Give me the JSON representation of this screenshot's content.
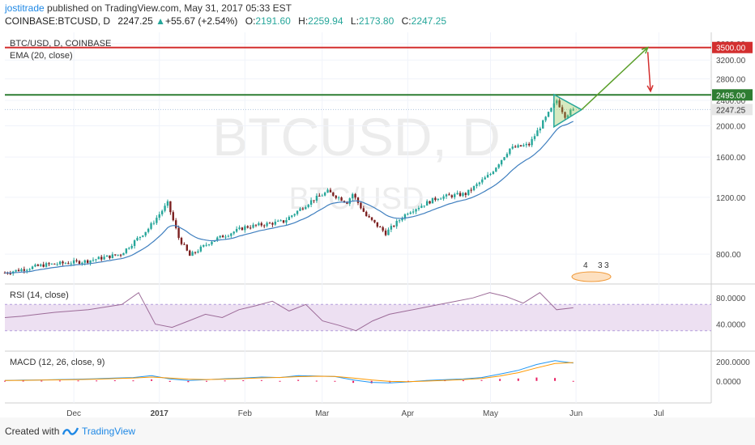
{
  "header": {
    "author": "jostitrade",
    "published_text": "published on TradingView.com, May 31, 2017 05:33 EST",
    "symbol": "COINBASE:BTCUSD, D",
    "last": "2247.25",
    "change": "+55.67 (+2.54%)",
    "o_label": "O:",
    "o_value": "2191.60",
    "h_label": "H:",
    "h_value": "2259.94",
    "l_label": "L:",
    "l_value": "2173.80",
    "c_label": "C:",
    "c_value": "2247.25"
  },
  "footer": {
    "created": "Created with",
    "brand": "TradingView"
  },
  "colors": {
    "up": "#26a69a",
    "down": "#7b1f1f",
    "ema": "#3f7fbf",
    "resistance": "#d32f2f",
    "support": "#2e7d32",
    "rsi": "#9c6b98",
    "rsi_band": "#ede0f2",
    "macd": "#2196f3",
    "signal": "#ff9800",
    "hist_pos": "#26a69a",
    "hist_neg": "#e91e63"
  },
  "chart_data": [
    {
      "type": "candlestick",
      "title": "BTC/USD, D, COINBASE",
      "indicator": "EMA (20, close)",
      "watermark_main": "BTCUSD, D",
      "watermark_sub": "BTC/USD",
      "y_scale": "log",
      "ylim": [
        650,
        3900
      ],
      "y_ticks": [
        "800.00",
        "1200.00",
        "1600.00",
        "2000.00",
        "2400.00",
        "2800.00",
        "3200.00",
        "3600.00"
      ],
      "x_ticks": [
        "Dec",
        "2017",
        "Feb",
        "Mar",
        "Apr",
        "May",
        "Jun",
        "Jul"
      ],
      "x_tick_dates": [
        "2016-12-01",
        "2017-01-01",
        "2017-02-01",
        "2017-03-01",
        "2017-04-01",
        "2017-05-01",
        "2017-06-01",
        "2017-07-01"
      ],
      "x_range": [
        "2016-11-06",
        "2017-07-20"
      ],
      "price_labels": [
        {
          "value": 3500,
          "label": "3500.00",
          "color": "#d32f2f"
        },
        {
          "value": 2495,
          "label": "2495.00",
          "color": "#2e7d32"
        },
        {
          "value": 2247.25,
          "label": "2247.25",
          "color": "#e6e6e6"
        }
      ],
      "lines": [
        {
          "name": "resistance",
          "value": 3500,
          "color": "#d32f2f"
        },
        {
          "name": "support",
          "value": 2495,
          "color": "#2e7d32"
        }
      ],
      "triangle": [
        [
          "2017-05-24",
          2500
        ],
        [
          "2017-05-24",
          1985
        ],
        [
          "2017-06-03",
          2245
        ]
      ],
      "arrows": [
        {
          "from": [
            "2017-06-03",
            2245
          ],
          "to": [
            "2017-06-27",
            3500
          ],
          "color": "#5a9f2a"
        },
        {
          "from": [
            "2017-06-27",
            3390
          ],
          "to": [
            "2017-06-28",
            2560
          ],
          "color": "#d32f2f"
        }
      ],
      "events": [
        "4",
        "3",
        "3"
      ],
      "ohlc_anchors": [
        [
          "2016-11-06",
          700
        ],
        [
          "2016-11-20",
          740
        ],
        [
          "2016-12-05",
          760
        ],
        [
          "2016-12-18",
          800
        ],
        [
          "2016-12-28",
          960
        ],
        [
          "2017-01-04",
          1150
        ],
        [
          "2017-01-08",
          900
        ],
        [
          "2017-01-12",
          790
        ],
        [
          "2017-01-20",
          880
        ],
        [
          "2017-02-01",
          970
        ],
        [
          "2017-02-15",
          1010
        ],
        [
          "2017-02-25",
          1170
        ],
        [
          "2017-03-03",
          1250
        ],
        [
          "2017-03-10",
          1160
        ],
        [
          "2017-03-12",
          1230
        ],
        [
          "2017-03-17",
          1050
        ],
        [
          "2017-03-24",
          930
        ],
        [
          "2017-04-01",
          1080
        ],
        [
          "2017-04-12",
          1200
        ],
        [
          "2017-04-22",
          1230
        ],
        [
          "2017-05-01",
          1420
        ],
        [
          "2017-05-08",
          1700
        ],
        [
          "2017-05-15",
          1750
        ],
        [
          "2017-05-20",
          2050
        ],
        [
          "2017-05-25",
          2400
        ],
        [
          "2017-05-28",
          2150
        ],
        [
          "2017-05-31",
          2247.25
        ]
      ]
    },
    {
      "type": "line",
      "title": "RSI (14, close)",
      "ylim": [
        0,
        100
      ],
      "y_ticks": [
        "40.0000",
        "80.0000"
      ],
      "band": [
        30,
        70
      ],
      "values": [
        50,
        52,
        55,
        58,
        60,
        62,
        66,
        70,
        88,
        40,
        35,
        45,
        55,
        50,
        62,
        68,
        75,
        60,
        70,
        45,
        38,
        30,
        45,
        55,
        60,
        65,
        70,
        75,
        80,
        88,
        82,
        72,
        88,
        62,
        65
      ]
    },
    {
      "type": "line",
      "title": "MACD (12, 26, close, 9)",
      "ylim": [
        -220,
        300
      ],
      "y_ticks": [
        "0.0000",
        "200.0000"
      ],
      "macd": [
        5,
        8,
        10,
        14,
        18,
        22,
        30,
        35,
        55,
        20,
        5,
        12,
        22,
        30,
        40,
        35,
        55,
        50,
        45,
        10,
        -15,
        -20,
        -10,
        5,
        12,
        20,
        35,
        70,
        110,
        170,
        210,
        185
      ],
      "signal": [
        4,
        6,
        8,
        11,
        14,
        18,
        24,
        30,
        40,
        30,
        18,
        14,
        18,
        24,
        32,
        36,
        44,
        48,
        46,
        30,
        10,
        -5,
        -8,
        -2,
        6,
        14,
        26,
        50,
        85,
        135,
        180,
        190
      ],
      "histogram": [
        1,
        2,
        2,
        3,
        4,
        4,
        6,
        5,
        15,
        -10,
        -13,
        -2,
        4,
        6,
        8,
        -1,
        11,
        2,
        -1,
        -20,
        -25,
        -15,
        -2,
        7,
        6,
        6,
        9,
        20,
        25,
        35,
        30,
        -5
      ]
    }
  ]
}
